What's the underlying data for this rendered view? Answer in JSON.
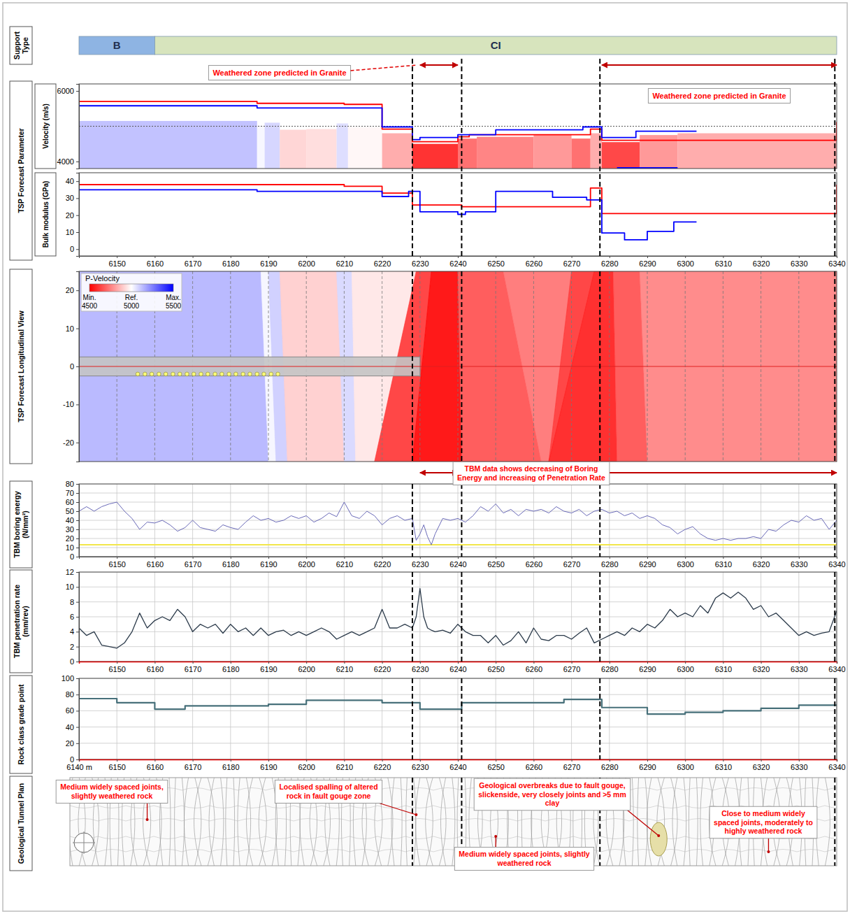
{
  "chart_data": [
    {
      "type": "segments",
      "title": "Support Type",
      "xlim": [
        6140,
        6340
      ],
      "segments": [
        {
          "label": "B",
          "start": 6140,
          "end": 6160,
          "color": "#8eb4e3"
        },
        {
          "label": "CI",
          "start": 6160,
          "end": 6340,
          "color": "#d7e4bd"
        }
      ]
    },
    {
      "type": "line",
      "title": "TSP Forecast Parameter",
      "ylabel": "Velocity (m/s)",
      "xlim": [
        6140,
        6340
      ],
      "ylim": [
        3800,
        6200
      ],
      "yticks": [
        4000,
        6000
      ],
      "tick_labels": "y",
      "reference": 5000,
      "band_edges": [
        6140,
        6187,
        6189,
        6193,
        6200,
        6208,
        6211,
        6220,
        6228,
        6240,
        6245,
        6260,
        6270,
        6275,
        6278,
        6288,
        6298,
        6340
      ],
      "band_values": [
        5150,
        5020,
        5100,
        4900,
        4920,
        5080,
        4980,
        4800,
        4500,
        4650,
        4700,
        4750,
        4650,
        4800,
        4550,
        4750,
        4800
      ],
      "series": [
        {
          "color": "#ff0000",
          "line_style": "step",
          "x": [
            6140,
            6187,
            6210,
            6220,
            6228,
            6240,
            6243,
            6275,
            6278,
            6340
          ],
          "values": [
            5700,
            5650,
            5620,
            4920,
            4560,
            4700,
            4760,
            4920,
            4600,
            5120
          ]
        },
        {
          "color": "#0000ff",
          "line_style": "step",
          "x": [
            6140,
            6187,
            6220,
            6228,
            6230,
            6240,
            6250,
            6273,
            6278,
            6287,
            6303
          ],
          "values": [
            5580,
            5520,
            4980,
            4620,
            4680,
            4760,
            4900,
            4980,
            4680,
            4860,
            4860
          ]
        },
        {
          "color": "#0000ff",
          "line_style": "step",
          "x": [
            6282,
            6298
          ],
          "values": [
            3820,
            3820
          ]
        }
      ],
      "annotations": [
        {
          "text": "Weathered zone predicted in Granite",
          "range": [
            6230,
            6240
          ]
        },
        {
          "text": "Weathered zone predicted in Granite",
          "range": [
            6278,
            6340
          ]
        }
      ]
    },
    {
      "type": "line",
      "ylabel": "Bulk modulus (GPa)",
      "xlim": [
        6140,
        6340
      ],
      "ylim": [
        -4,
        45
      ],
      "yticks": [
        0,
        10,
        20,
        30,
        40
      ],
      "xticks": [
        6150,
        6160,
        6170,
        6180,
        6190,
        6200,
        6210,
        6220,
        6230,
        6240,
        6250,
        6260,
        6270,
        6280,
        6290,
        6300,
        6310,
        6320,
        6330,
        6340
      ],
      "series": [
        {
          "color": "#ff0000",
          "line_style": "step",
          "x": [
            6140,
            6210,
            6220,
            6228,
            6241,
            6275,
            6278,
            6340
          ],
          "values": [
            38,
            37,
            33,
            26,
            25,
            36,
            21,
            38
          ]
        },
        {
          "color": "#0000ff",
          "line_style": "step",
          "x": [
            6140,
            6187,
            6220,
            6227,
            6230,
            6240,
            6242,
            6250,
            6265,
            6274,
            6278,
            6284,
            6290,
            6297,
            6303
          ],
          "values": [
            35,
            34,
            31,
            34,
            22,
            20.5,
            22,
            34,
            30.5,
            29,
            9.5,
            5.5,
            10.5,
            16,
            16
          ]
        }
      ]
    },
    {
      "type": "section",
      "title": "TSP Forecast Longitudinal View",
      "xlim": [
        6140,
        6340
      ],
      "ylim": [
        -25,
        25
      ],
      "yticks": [
        -20,
        -10,
        0,
        10,
        20
      ],
      "xticks": [
        6150,
        6160,
        6170,
        6180,
        6190,
        6200,
        6210,
        6220,
        6230,
        6240,
        6250,
        6260,
        6270,
        6280,
        6290,
        6300,
        6310,
        6320,
        6330
      ],
      "grid": "x",
      "tick_labels": "y",
      "colorbar": {
        "title": "P-Velocity",
        "labels": [
          "Min.",
          "Ref.",
          "Max."
        ],
        "ticks": [
          4500,
          5000,
          5500
        ],
        "colors": [
          "#ff0000",
          "#ffffff",
          "#0000ff"
        ]
      },
      "zones": [
        {
          "top": [
            6140,
            6188
          ],
          "bottom": [
            6140,
            6190
          ],
          "value": 5150
        },
        {
          "top": [
            6188,
            6190
          ],
          "bottom": [
            6190,
            6192
          ],
          "value": 5020
        },
        {
          "top": [
            6190,
            6193
          ],
          "bottom": [
            6192,
            6195
          ],
          "value": 5100
        },
        {
          "top": [
            6193,
            6208
          ],
          "bottom": [
            6195,
            6210
          ],
          "value": 4900
        },
        {
          "top": [
            6208,
            6212
          ],
          "bottom": [
            6210,
            6213
          ],
          "value": 5080
        },
        {
          "top": [
            6212,
            6229
          ],
          "bottom": [
            6213,
            6218
          ],
          "value": 4950
        },
        {
          "top": [
            6229,
            6233
          ],
          "bottom": [
            6218,
            6228
          ],
          "value": 4600
        },
        {
          "top": [
            6233,
            6240
          ],
          "bottom": [
            6228,
            6241
          ],
          "value": 4500
        },
        {
          "top": [
            6240,
            6252
          ],
          "bottom": [
            6241,
            6262
          ],
          "value": 4650
        },
        {
          "top": [
            6252,
            6270
          ],
          "bottom": [
            6262,
            6264
          ],
          "value": 4720
        },
        {
          "top": [
            6270,
            6276
          ],
          "bottom": [
            6264,
            6264
          ],
          "value": 4600
        },
        {
          "top": [
            6276,
            6281
          ],
          "bottom": [
            6264,
            6282
          ],
          "value": 4550
        },
        {
          "top": [
            6281,
            6288
          ],
          "bottom": [
            6282,
            6290
          ],
          "value": 4650
        },
        {
          "top": [
            6288,
            6340
          ],
          "bottom": [
            6290,
            6340
          ],
          "value": 4750
        }
      ],
      "tunnel": {
        "start": 6140,
        "end": 6230,
        "y": [
          -2.5,
          2.5
        ]
      },
      "centerline": 0,
      "receivers": {
        "x": [
          6155.5,
          6157.4,
          6159.2,
          6161.1,
          6162.9,
          6164.8,
          6166.6,
          6168.5,
          6170.3,
          6172.2,
          6174,
          6175.9,
          6177.7,
          6179.6,
          6181.4,
          6183.3,
          6185.1,
          6187,
          6188.8,
          6190.7,
          6192.5
        ],
        "y": -2
      }
    },
    {
      "type": "line",
      "title": "TBM boring energy (N/mm²)",
      "xlim": [
        6140,
        6340
      ],
      "ylim": [
        0,
        80
      ],
      "yticks": [
        0,
        10,
        20,
        30,
        40,
        50,
        60,
        70,
        80
      ],
      "xticks": [
        6150,
        6160,
        6170,
        6180,
        6190,
        6200,
        6210,
        6220,
        6230,
        6240,
        6250,
        6260,
        6270,
        6280,
        6290,
        6300,
        6310,
        6320,
        6330,
        6340
      ],
      "grid": true,
      "threshold": 13,
      "x": [
        6140,
        6142,
        6144,
        6146,
        6148,
        6150,
        6152,
        6154,
        6156,
        6158,
        6160,
        6162,
        6164,
        6166,
        6168,
        6170,
        6172,
        6174,
        6176,
        6178,
        6180,
        6182,
        6184,
        6186,
        6188,
        6190,
        6192,
        6194,
        6196,
        6198,
        6200,
        6202,
        6204,
        6206,
        6208,
        6210,
        6212,
        6214,
        6216,
        6218,
        6220,
        6222,
        6224,
        6226,
        6228,
        6229,
        6230,
        6231,
        6232,
        6233,
        6234,
        6236,
        6238,
        6240,
        6242,
        6244,
        6246,
        6248,
        6250,
        6252,
        6254,
        6256,
        6258,
        6260,
        6262,
        6264,
        6266,
        6268,
        6270,
        6272,
        6274,
        6276,
        6278,
        6280,
        6282,
        6284,
        6286,
        6288,
        6290,
        6292,
        6294,
        6296,
        6298,
        6300,
        6302,
        6304,
        6306,
        6308,
        6310,
        6312,
        6314,
        6316,
        6318,
        6320,
        6322,
        6324,
        6326,
        6328,
        6330,
        6332,
        6334,
        6336,
        6338,
        6340
      ],
      "series": [
        {
          "color": "#6a6ab8",
          "values": [
            50,
            55,
            50,
            55,
            58,
            60,
            50,
            42,
            30,
            38,
            37,
            40,
            35,
            28,
            32,
            40,
            32,
            30,
            28,
            35,
            32,
            30,
            38,
            45,
            40,
            42,
            38,
            40,
            45,
            42,
            45,
            38,
            42,
            48,
            44,
            60,
            45,
            42,
            50,
            45,
            35,
            42,
            45,
            40,
            42,
            18,
            25,
            35,
            22,
            13,
            25,
            42,
            40,
            42,
            38,
            45,
            55,
            50,
            58,
            48,
            52,
            45,
            52,
            50,
            52,
            48,
            55,
            50,
            48,
            52,
            45,
            50,
            52,
            48,
            50,
            45,
            48,
            42,
            45,
            42,
            35,
            32,
            25,
            30,
            33,
            25,
            20,
            18,
            20,
            18,
            20,
            20,
            22,
            20,
            30,
            28,
            35,
            40,
            38,
            45,
            40,
            42,
            30,
            40
          ]
        }
      ],
      "annotation": {
        "text": "TBM data shows decreasing of Boring Energy and increasing of Penetration Rate",
        "ranges": [
          [
            6230,
            6240
          ],
          [
            6278,
            6340
          ]
        ]
      }
    },
    {
      "type": "line",
      "title": "TBM penetration rate (mm/rev)",
      "xlim": [
        6140,
        6340
      ],
      "ylim": [
        0,
        12
      ],
      "yticks": [
        0,
        2,
        4,
        6,
        8,
        10,
        12
      ],
      "xticks": [
        6150,
        6160,
        6170,
        6180,
        6190,
        6200,
        6210,
        6220,
        6230,
        6240,
        6250,
        6260,
        6270,
        6280,
        6290,
        6300,
        6310,
        6320,
        6330,
        6340
      ],
      "grid": true,
      "x": [
        6140,
        6142,
        6144,
        6146,
        6148,
        6150,
        6152,
        6154,
        6156,
        6158,
        6160,
        6162,
        6164,
        6166,
        6168,
        6170,
        6172,
        6174,
        6176,
        6178,
        6180,
        6182,
        6184,
        6186,
        6188,
        6190,
        6192,
        6194,
        6196,
        6198,
        6200,
        6202,
        6204,
        6206,
        6208,
        6210,
        6212,
        6214,
        6216,
        6218,
        6220,
        6222,
        6224,
        6226,
        6228,
        6229,
        6230,
        6231,
        6232,
        6233,
        6234,
        6236,
        6238,
        6240,
        6242,
        6244,
        6246,
        6248,
        6250,
        6252,
        6254,
        6256,
        6258,
        6260,
        6262,
        6264,
        6266,
        6268,
        6270,
        6272,
        6274,
        6276,
        6278,
        6280,
        6282,
        6284,
        6286,
        6288,
        6290,
        6292,
        6294,
        6296,
        6298,
        6300,
        6302,
        6304,
        6306,
        6308,
        6310,
        6312,
        6314,
        6316,
        6318,
        6320,
        6322,
        6324,
        6326,
        6328,
        6330,
        6332,
        6334,
        6336,
        6338,
        6340
      ],
      "series": [
        {
          "color": "#2b3a4a",
          "values": [
            4.5,
            3.5,
            4,
            2.2,
            2,
            1.8,
            2.5,
            4,
            6.5,
            4.5,
            5.5,
            6,
            5.5,
            7,
            6,
            4,
            5,
            4.5,
            5,
            3.8,
            5,
            4,
            4.5,
            3.5,
            4.5,
            3.5,
            4,
            4.2,
            3.5,
            4,
            3.5,
            4,
            4.5,
            4,
            3,
            3.5,
            4,
            3.5,
            4,
            4.5,
            7,
            4.5,
            4.5,
            5,
            4.5,
            6,
            9.8,
            6,
            4.5,
            4.2,
            4,
            4.2,
            3.8,
            5,
            4,
            3.5,
            3.5,
            2.5,
            3.5,
            2.2,
            2.8,
            4,
            2.5,
            4.5,
            3,
            2.8,
            3.5,
            3.5,
            3,
            3.8,
            4.5,
            2.5,
            3,
            3.5,
            4,
            3.5,
            4.5,
            4,
            5,
            4.5,
            5.5,
            7,
            6,
            6.5,
            6,
            7.5,
            6.5,
            8.5,
            9.2,
            8.5,
            9.3,
            8.5,
            7,
            7.5,
            6,
            6.5,
            5.5,
            4.5,
            3.5,
            4,
            3.5,
            3.8,
            4,
            6.8
          ]
        }
      ]
    },
    {
      "type": "line",
      "title": "Rock class grade point",
      "xlim": [
        6140,
        6340
      ],
      "ylim": [
        0,
        100
      ],
      "yticks": [
        0,
        20,
        40,
        60,
        80,
        100
      ],
      "xticks": [
        {
          "value": 6140,
          "label": "6140 m"
        },
        6150,
        6160,
        6170,
        6180,
        6190,
        6200,
        6210,
        6220,
        6230,
        6240,
        6250,
        6260,
        6270,
        6280,
        6290,
        6300,
        6310,
        6320,
        6330,
        6340
      ],
      "grid": true,
      "series": [
        {
          "color": "#47707a",
          "line_style": "step",
          "x": [
            6140,
            6150,
            6160,
            6168,
            6190,
            6200,
            6220,
            6230,
            6241,
            6268,
            6278,
            6290,
            6300,
            6310,
            6320,
            6330,
            6340
          ],
          "values": [
            75,
            70,
            62,
            66,
            68,
            73,
            70,
            62,
            70,
            74,
            64,
            56,
            58,
            60,
            63,
            67,
            67
          ]
        }
      ]
    },
    {
      "type": "plan",
      "title": "Geological Tunnel Plan",
      "xlim": [
        6140,
        6340
      ],
      "annotations": [
        {
          "text": "Medium widely spaced joints, slightly weathered rock",
          "x": 6158
        },
        {
          "text": "Localised spalling of altered rock in fault gouge zone",
          "x": 6229
        },
        {
          "text": "Geological overbreaks due to fault gouge, slickenside, very closely joints and >5 mm clay",
          "x": 6293
        },
        {
          "text": "Close to medium widely spaced joints, moderately to highly weathered rock",
          "x": 6322
        },
        {
          "text": "Medium widely spaced joints, slightly weathered rock",
          "x": 6250
        }
      ]
    }
  ],
  "figure": {
    "boundaries": [
      6228,
      6241,
      6277.5,
      6339.5
    ]
  }
}
